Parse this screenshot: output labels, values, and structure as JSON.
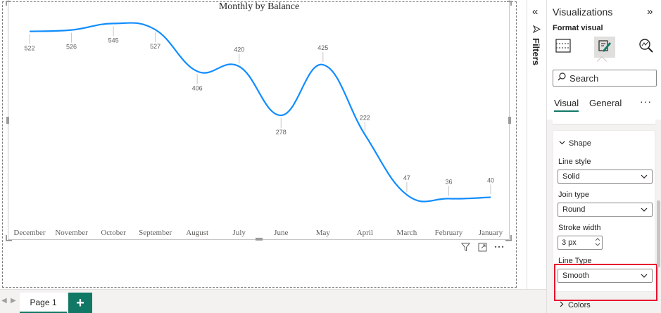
{
  "chart_data": {
    "type": "line",
    "title": "Monthly by Balance",
    "xlabel": "",
    "ylabel": "",
    "categories": [
      "December",
      "November",
      "October",
      "September",
      "August",
      "July",
      "June",
      "May",
      "April",
      "March",
      "February",
      "January"
    ],
    "series": [
      {
        "values": [
          522,
          526,
          545,
          527,
          406,
          420,
          278,
          425,
          222,
          47,
          36,
          40
        ]
      }
    ],
    "data_labels": [
      "522",
      "526",
      "545",
      "527",
      "406",
      "420",
      "278",
      "425",
      "222",
      "47",
      "36",
      "40"
    ],
    "ylim": [
      0,
      560
    ],
    "line_style": "smooth",
    "line_color": "#118dff",
    "grid": false,
    "legend": "none"
  },
  "filters": {
    "label": "Filters"
  },
  "visualizations": {
    "title": "Visualizations",
    "subtitle": "Format visual",
    "search_placeholder": "Search",
    "tabs": [
      {
        "label": "Visual"
      },
      {
        "label": "General"
      }
    ],
    "more": "···",
    "shape_section": "Shape",
    "line_style_label": "Line style",
    "line_style_value": "Solid",
    "join_type_label": "Join type",
    "join_type_value": "Round",
    "stroke_width_label": "Stroke width",
    "stroke_width_value": "3 px",
    "line_type_label": "Line Type",
    "line_type_value": "Smooth",
    "colors_section": "Colors",
    "accent": "#117865",
    "highlight_color": "#e8112d"
  },
  "pages": {
    "tabs": [
      {
        "label": "Page 1"
      }
    ],
    "add_label": "+"
  }
}
